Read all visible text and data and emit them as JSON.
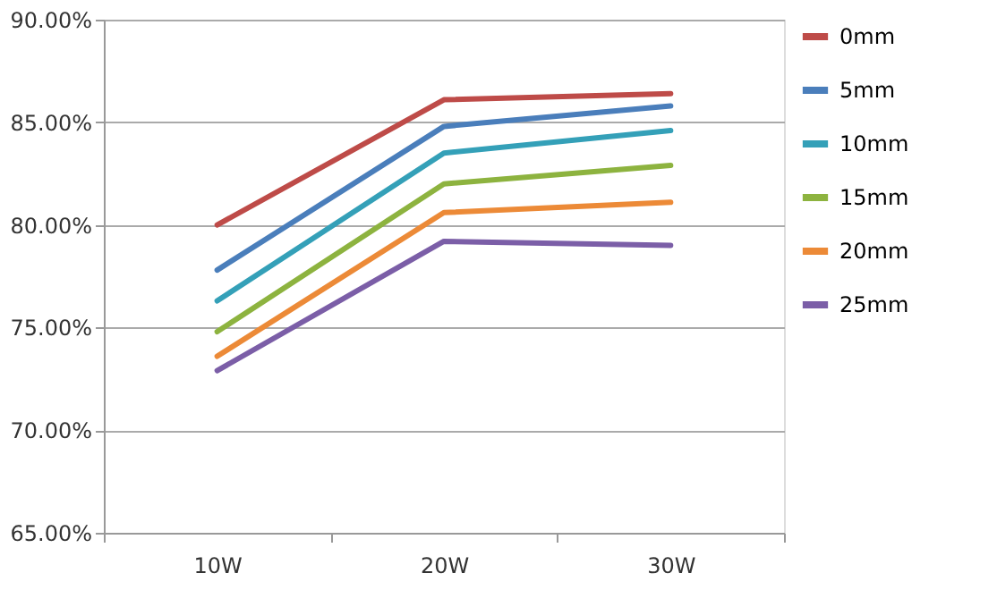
{
  "chart_data": {
    "type": "line",
    "categories": [
      "10W",
      "20W",
      "30W"
    ],
    "series": [
      {
        "name": "0mm",
        "color": "#be4b48",
        "values": [
          80.0,
          86.1,
          86.4
        ]
      },
      {
        "name": "5mm",
        "color": "#4a7ebb",
        "values": [
          77.8,
          84.8,
          85.8
        ]
      },
      {
        "name": "10mm",
        "color": "#34a0b8",
        "values": [
          76.3,
          83.5,
          84.6
        ]
      },
      {
        "name": "15mm",
        "color": "#8db33f",
        "values": [
          74.8,
          82.0,
          82.9
        ]
      },
      {
        "name": "20mm",
        "color": "#ec8a37",
        "values": [
          73.6,
          80.6,
          81.1
        ]
      },
      {
        "name": "25mm",
        "color": "#7b5ea7",
        "values": [
          72.9,
          79.2,
          79.0
        ]
      }
    ],
    "ylim": [
      65,
      90
    ],
    "yticks": [
      {
        "value": 65,
        "label": "65.00%"
      },
      {
        "value": 70,
        "label": "70.00%"
      },
      {
        "value": 75,
        "label": "75.00%"
      },
      {
        "value": 80,
        "label": "80.00%"
      },
      {
        "value": 85,
        "label": "85.00%"
      },
      {
        "value": 90,
        "label": "90.00%"
      }
    ],
    "grid": "y",
    "legend": "right",
    "marker": "none",
    "line_style": "solid"
  }
}
